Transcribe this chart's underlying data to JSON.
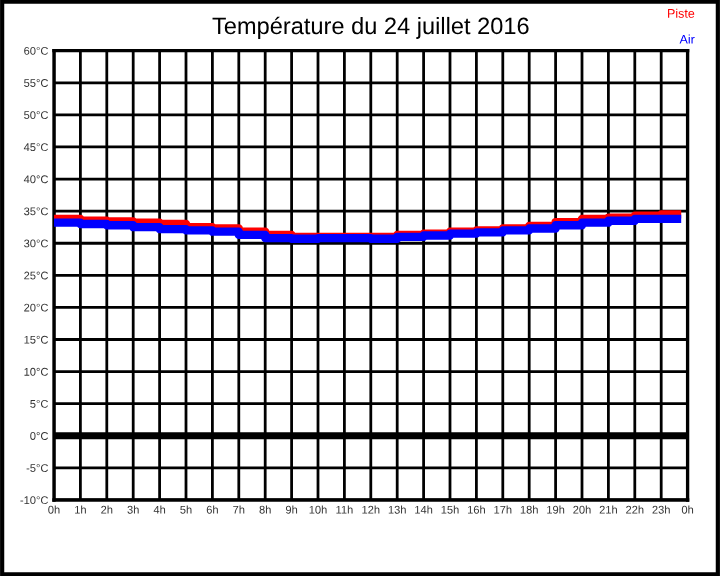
{
  "chart_data": {
    "type": "step",
    "title": "Température du 24 juillet 2016",
    "x": [
      "2016-07-24T00:00",
      "2016-07-24T01:00",
      "2016-07-24T02:00",
      "2016-07-24T03:00",
      "2016-07-24T04:00",
      "2016-07-24T05:00",
      "2016-07-24T06:00",
      "2016-07-24T07:00",
      "2016-07-24T08:00",
      "2016-07-24T09:00",
      "2016-07-24T10:00",
      "2016-07-24T11:00",
      "2016-07-24T12:00",
      "2016-07-24T13:00",
      "2016-07-24T14:00",
      "2016-07-24T15:00",
      "2016-07-24T16:00",
      "2016-07-24T17:00",
      "2016-07-24T18:00",
      "2016-07-24T19:00",
      "2016-07-24T20:00",
      "2016-07-24T21:00",
      "2016-07-24T22:00",
      "2016-07-24T23:00",
      "2016-07-24T23:36"
    ],
    "series": [
      {
        "name": "Piste",
        "color": "#ff0000",
        "values": [
          33.8,
          33.5,
          33.4,
          33.2,
          33.0,
          32.5,
          32.3,
          31.8,
          31.3,
          31.0,
          31.0,
          31.0,
          31.0,
          31.3,
          31.5,
          31.8,
          32.0,
          32.3,
          32.7,
          33.3,
          33.8,
          34.0,
          34.3,
          34.5,
          34.5
        ]
      },
      {
        "name": "Air",
        "color": "#0000ff",
        "values": [
          33.2,
          33.0,
          32.8,
          32.5,
          32.2,
          32.0,
          31.8,
          31.3,
          30.8,
          30.7,
          30.8,
          30.8,
          30.7,
          31.0,
          31.2,
          31.5,
          31.7,
          32.0,
          32.3,
          32.8,
          33.2,
          33.5,
          33.8,
          33.8,
          33.8
        ]
      }
    ],
    "xlim": [
      "2016-07-24T00:00",
      "2016-07-25T00:00"
    ],
    "xticks": [
      {
        "value": "2016-07-24T00:00",
        "label": "0h"
      },
      {
        "value": "2016-07-24T01:00",
        "label": "1h"
      },
      {
        "value": "2016-07-24T02:00",
        "label": "2h"
      },
      {
        "value": "2016-07-24T03:00",
        "label": "3h"
      },
      {
        "value": "2016-07-24T04:00",
        "label": "4h"
      },
      {
        "value": "2016-07-24T05:00",
        "label": "5h"
      },
      {
        "value": "2016-07-24T06:00",
        "label": "6h"
      },
      {
        "value": "2016-07-24T07:00",
        "label": "7h"
      },
      {
        "value": "2016-07-24T08:00",
        "label": "8h"
      },
      {
        "value": "2016-07-24T09:00",
        "label": "9h"
      },
      {
        "value": "2016-07-24T10:00",
        "label": "10h"
      },
      {
        "value": "2016-07-24T11:00",
        "label": "11h"
      },
      {
        "value": "2016-07-24T12:00",
        "label": "12h"
      },
      {
        "value": "2016-07-24T13:00",
        "label": "13h"
      },
      {
        "value": "2016-07-24T14:00",
        "label": "14h"
      },
      {
        "value": "2016-07-24T15:00",
        "label": "15h"
      },
      {
        "value": "2016-07-24T16:00",
        "label": "16h"
      },
      {
        "value": "2016-07-24T17:00",
        "label": "17h"
      },
      {
        "value": "2016-07-24T18:00",
        "label": "18h"
      },
      {
        "value": "2016-07-24T19:00",
        "label": "19h"
      },
      {
        "value": "2016-07-24T20:00",
        "label": "20h"
      },
      {
        "value": "2016-07-24T21:00",
        "label": "21h"
      },
      {
        "value": "2016-07-24T22:00",
        "label": "22h"
      },
      {
        "value": "2016-07-24T23:00",
        "label": "23h"
      },
      {
        "value": "2016-07-25T00:00",
        "label": "0h"
      }
    ],
    "ylim": [
      -10,
      60
    ],
    "yticks": [
      {
        "value": -10,
        "label": "-10°C"
      },
      {
        "value": -5,
        "label": "-5°C"
      },
      {
        "value": 0,
        "label": "0°C"
      },
      {
        "value": 5,
        "label": "5°C"
      },
      {
        "value": 10,
        "label": "10°C"
      },
      {
        "value": 15,
        "label": "15°C"
      },
      {
        "value": 20,
        "label": "20°C"
      },
      {
        "value": 25,
        "label": "25°C"
      },
      {
        "value": 30,
        "label": "30°C"
      },
      {
        "value": 35,
        "label": "35°C"
      },
      {
        "value": 40,
        "label": "40°C"
      },
      {
        "value": 45,
        "label": "45°C"
      },
      {
        "value": 50,
        "label": "50°C"
      },
      {
        "value": 55,
        "label": "55°C"
      },
      {
        "value": 60,
        "label": "60°C"
      }
    ],
    "ref_lines": [
      {
        "axis": "y",
        "value": 0,
        "color": "#000000"
      }
    ],
    "grid": true,
    "legend": "top right",
    "line_style": "solid",
    "marker": "none"
  }
}
